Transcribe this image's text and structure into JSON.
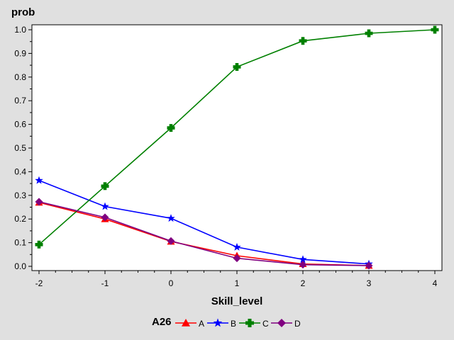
{
  "chart_data": {
    "type": "line",
    "title": "",
    "xlabel": "Skill_level",
    "ylabel": "prob",
    "xlim": [
      -2,
      4
    ],
    "ylim": [
      0,
      1
    ],
    "x_ticks": [
      "-2",
      "-1",
      "0",
      "1",
      "2",
      "3",
      "4"
    ],
    "y_ticks": [
      "0.0",
      "0.1",
      "0.2",
      "0.3",
      "0.4",
      "0.5",
      "0.6",
      "0.7",
      "0.8",
      "0.9",
      "1.0"
    ],
    "grid": false,
    "legend_title": "A26",
    "legend_position": "bottom",
    "series": [
      {
        "name": "A",
        "color": "#ff0000",
        "marker": "triangle",
        "x": [
          -2,
          -1,
          0,
          1,
          2,
          3
        ],
        "y": [
          0.27,
          0.2,
          0.105,
          0.045,
          0.01,
          0.003
        ]
      },
      {
        "name": "B",
        "color": "#0000ff",
        "marker": "star",
        "x": [
          -2,
          -1,
          0,
          1,
          2,
          3
        ],
        "y": [
          0.363,
          0.253,
          0.203,
          0.081,
          0.029,
          0.01
        ]
      },
      {
        "name": "C",
        "color": "#008000",
        "marker": "plus",
        "x": [
          -2,
          -1,
          0,
          1,
          2,
          3,
          4
        ],
        "y": [
          0.092,
          0.339,
          0.585,
          0.843,
          0.953,
          0.985,
          1.0
        ]
      },
      {
        "name": "D",
        "color": "#800080",
        "marker": "diamond",
        "x": [
          -2,
          -1,
          0,
          1,
          2,
          3
        ],
        "y": [
          0.273,
          0.207,
          0.107,
          0.034,
          0.007,
          0.003
        ]
      }
    ]
  }
}
